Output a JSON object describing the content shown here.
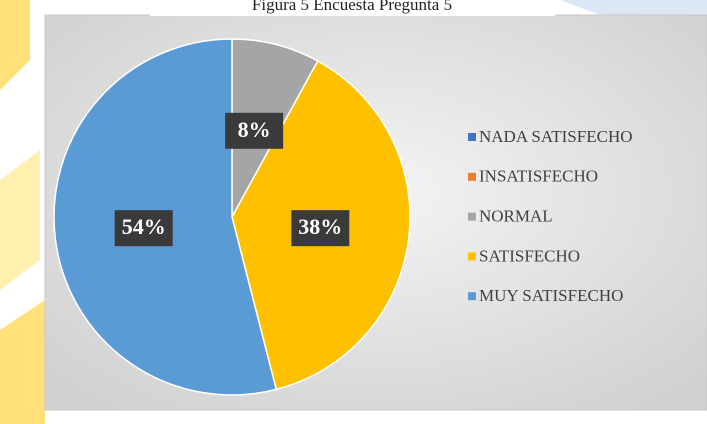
{
  "chart_data": {
    "type": "pie",
    "title": "Figura 5  Encuesta Pregunta 5",
    "categories": [
      "NADA SATISFECHO",
      "INSATISFECHO",
      "NORMAL",
      "SATISFECHO",
      "MUY SATISFECHO"
    ],
    "values": [
      0,
      0,
      8,
      38,
      54
    ],
    "value_labels": [
      null,
      null,
      "8%",
      "38%",
      "54%"
    ],
    "colors": [
      "#4472c4",
      "#ed7d31",
      "#a5a5a5",
      "#ffc000",
      "#5b9bd5"
    ],
    "legend": "right"
  }
}
